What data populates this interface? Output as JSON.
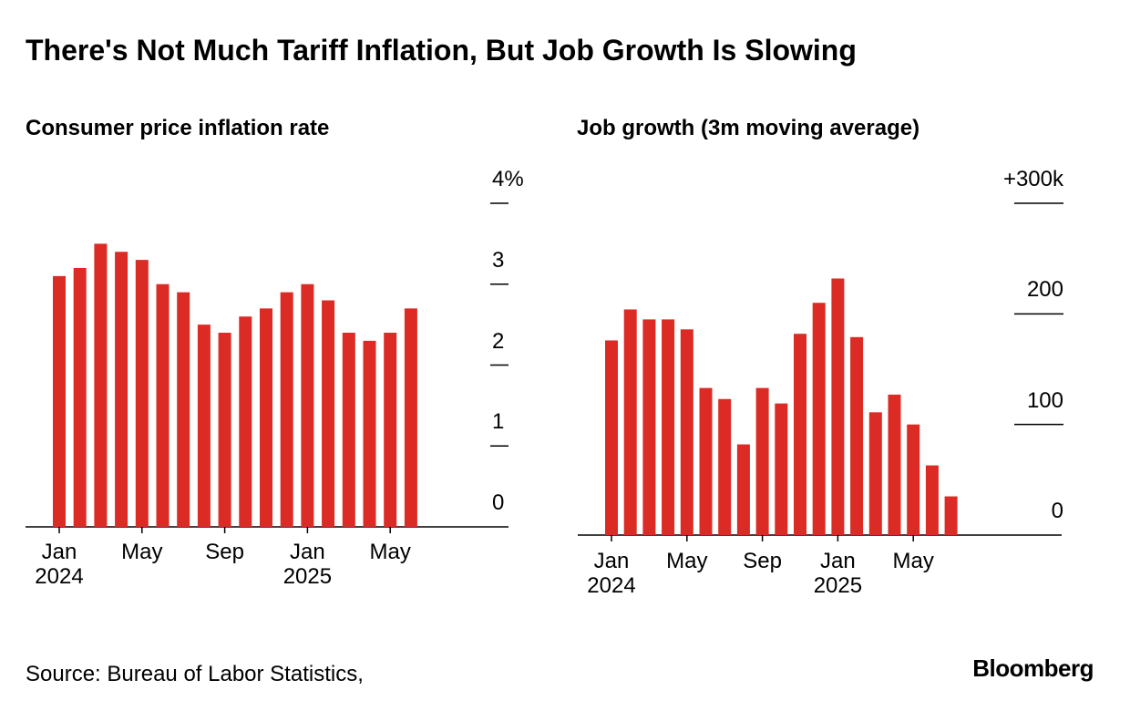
{
  "title": "There's Not Much Tariff Inflation, But Job Growth Is Slowing",
  "source": "Source: Bureau of Labor Statistics,",
  "logo": "Bloomberg",
  "chart_data": [
    {
      "type": "bar",
      "title": "Consumer price inflation rate",
      "categories": [
        "Jan\n2024",
        null,
        null,
        null,
        "May",
        null,
        null,
        null,
        "Sep",
        null,
        null,
        null,
        "Jan\n2025",
        null,
        null,
        null,
        "May",
        null
      ],
      "values": [
        3.1,
        3.2,
        3.5,
        3.4,
        3.3,
        3.0,
        2.9,
        2.5,
        2.4,
        2.6,
        2.7,
        2.9,
        3.0,
        2.8,
        2.4,
        2.3,
        2.4,
        2.7
      ],
      "color": "#dc2a24",
      "ylim": [
        0,
        4
      ],
      "yticks": [
        0,
        1,
        2,
        3,
        {
          "value": 4,
          "label": "4%"
        }
      ]
    },
    {
      "type": "bar",
      "title": "Job growth (3m moving average)",
      "categories": [
        "Jan\n2024",
        null,
        null,
        null,
        "May",
        null,
        null,
        null,
        "Sep",
        null,
        null,
        null,
        "Jan\n2025",
        null,
        null,
        null,
        "May",
        null,
        null
      ],
      "values": [
        176,
        204,
        195,
        195,
        186,
        133,
        123,
        82,
        133,
        119,
        182,
        210,
        232,
        179,
        111,
        127,
        100,
        63,
        35
      ],
      "color": "#dc2a24",
      "ylim": [
        0,
        300
      ],
      "yticks": [
        0,
        100,
        200,
        {
          "value": 300,
          "label": "+300k"
        }
      ]
    }
  ]
}
